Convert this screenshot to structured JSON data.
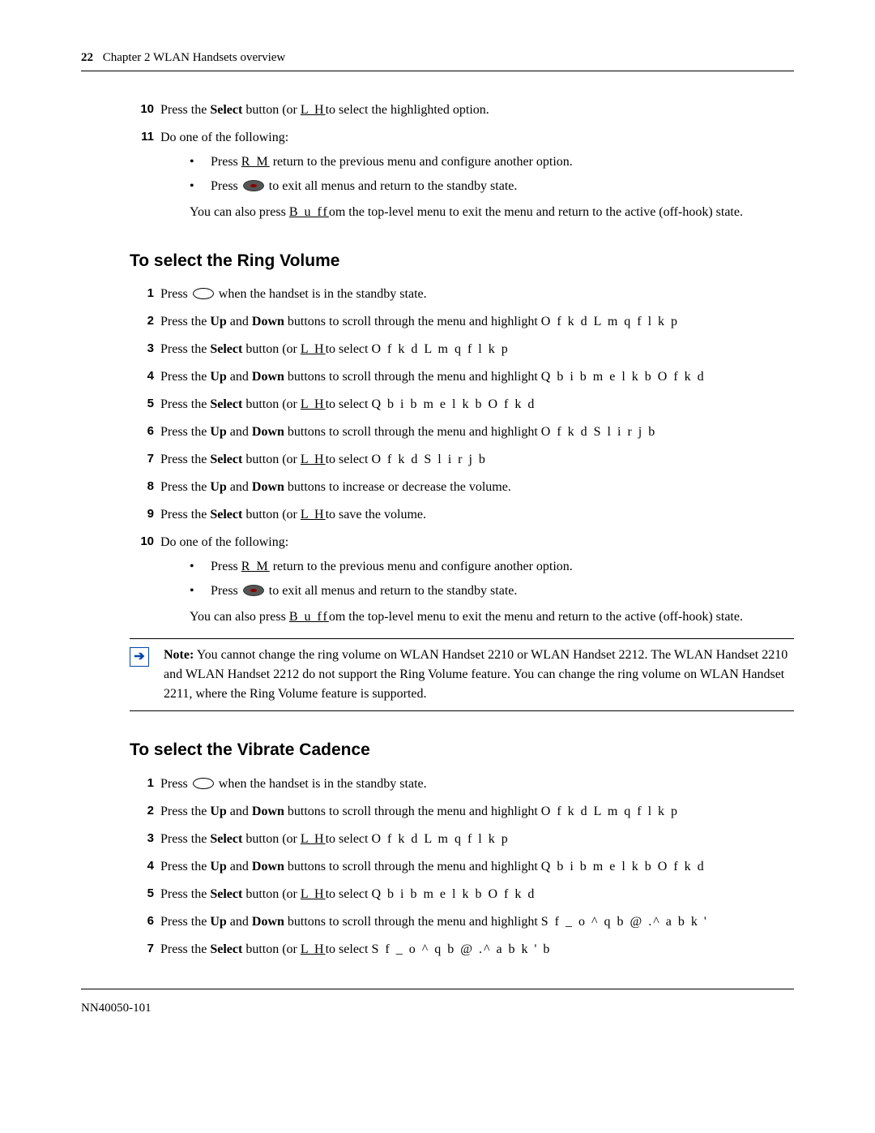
{
  "header": {
    "page_num": "22",
    "chapter": "Chapter 2  WLAN Handsets overview"
  },
  "top_steps": [
    {
      "num": "10",
      "text_before": "Press the ",
      "bold1": "Select",
      "text_mid": " button (or ",
      "ul1": "L H",
      "text_after": "to select the highlighted option."
    }
  ],
  "step11": {
    "num": "11",
    "intro": "Do one of the following:",
    "bullets": [
      {
        "pre": "Press ",
        "ul": "R M",
        "post": " return to the previous menu and configure another option."
      },
      {
        "pre": "Press ",
        "icon": "dark",
        "post": " to exit all menus and return to the standby state."
      }
    ],
    "para_pre": "You can also press ",
    "para_ul": "B u ff",
    "para_post": "om the top-level menu to exit the menu and return to the active (off-hook) state."
  },
  "ring_title": "To select the Ring Volume",
  "ring_steps": [
    {
      "num": "1",
      "pre": "Press ",
      "icon": "oval",
      "post": " when the handset is in the standby state."
    },
    {
      "num": "2",
      "pre": "Press the ",
      "b1": "Up",
      "mid1": " and ",
      "b2": "Down",
      "mid2": " buttons to scroll through the menu and highlight ",
      "mono": "O f k d  L m q f l k p"
    },
    {
      "num": "3",
      "pre": "Press the ",
      "b1": "Select",
      "mid1": " button (or ",
      "ul": "L H",
      "mid2": "to select ",
      "mono": "O f k d  L m q f l k p"
    },
    {
      "num": "4",
      "pre": "Press the ",
      "b1": "Up",
      "mid1": " and ",
      "b2": "Down",
      "mid2": " buttons to scroll through the menu and highlight ",
      "mono": "Q b i b m e l k b  O f k d"
    },
    {
      "num": "5",
      "pre": "Press the ",
      "b1": "Select",
      "mid1": " button (or ",
      "ul": "L H",
      "mid2": "to select ",
      "mono": "Q b i b m e l k b  O f k d"
    },
    {
      "num": "6",
      "pre": "Press the ",
      "b1": "Up",
      "mid1": " and ",
      "b2": "Down",
      "mid2": " buttons to scroll through the menu and highlight ",
      "mono": "O f k d  S l i r j b"
    },
    {
      "num": "7",
      "pre": "Press the ",
      "b1": "Select",
      "mid1": " button (or ",
      "ul": "L H",
      "mid2": "to select ",
      "mono": "O f k d  S l i r j b"
    },
    {
      "num": "8",
      "pre": "Press the ",
      "b1": "Up",
      "mid1": " and ",
      "b2": "Down",
      "mid2": " buttons to increase or decrease the volume."
    },
    {
      "num": "9",
      "pre": "Press the ",
      "b1": "Select",
      "mid1": " button (or ",
      "ul": "L H",
      "mid2": "to save the volume."
    }
  ],
  "ring_step10": {
    "num": "10",
    "intro": "Do one of the following:",
    "bullets": [
      {
        "pre": "Press ",
        "ul": "R M",
        "post": " return to the previous menu and configure another option."
      },
      {
        "pre": "Press ",
        "icon": "dark",
        "post": " to exit all menus and return to the standby state."
      }
    ],
    "para_pre": "You can also press ",
    "para_ul": "B u ff",
    "para_post": "om the top-level menu to exit the menu and return to the active (off-hook) state."
  },
  "note": {
    "label": "Note:",
    "text": " You cannot change the ring volume on WLAN Handset 2210 or WLAN Handset 2212. The WLAN Handset 2210 and WLAN Handset 2212 do not support the Ring Volume feature. You can change the ring volume on WLAN Handset 2211, where the Ring Volume feature is supported."
  },
  "vib_title": "To select the Vibrate Cadence",
  "vib_steps": [
    {
      "num": "1",
      "pre": "Press ",
      "icon": "oval",
      "post": " when the handset is in the standby state."
    },
    {
      "num": "2",
      "pre": "Press the ",
      "b1": "Up",
      "mid1": " and ",
      "b2": "Down",
      "mid2": " buttons to scroll through the menu and highlight ",
      "mono": "O f k d  L m q f l k p"
    },
    {
      "num": "3",
      "pre": "Press the ",
      "b1": "Select",
      "mid1": " button (or ",
      "ul": "L H",
      "mid2": "to select ",
      "mono": "O f k d  L m q f l k p"
    },
    {
      "num": "4",
      "pre": "Press the ",
      "b1": "Up",
      "mid1": " and ",
      "b2": "Down",
      "mid2": " buttons to scroll through the menu and highlight ",
      "mono": "Q b i b m e l k b  O f k d"
    },
    {
      "num": "5",
      "pre": "Press the ",
      "b1": "Select",
      "mid1": " button (or ",
      "ul": "L H",
      "mid2": "to select ",
      "mono": "Q b i b m e l k b  O f k d"
    },
    {
      "num": "6",
      "pre": "Press the ",
      "b1": "Up",
      "mid1": " and ",
      "b2": "Down",
      "mid2": " buttons to scroll through the menu and highlight ",
      "mono": "S f _ o ^ q b  @ .^ a b k '"
    },
    {
      "num": "7",
      "pre": "Press the ",
      "b1": "Select",
      "mid1": " button (or ",
      "ul": "L H",
      "mid2": "to select ",
      "mono": "S f _ o ^ q b  @ .^ a b k ' b"
    }
  ],
  "footer": "NN40050-101"
}
